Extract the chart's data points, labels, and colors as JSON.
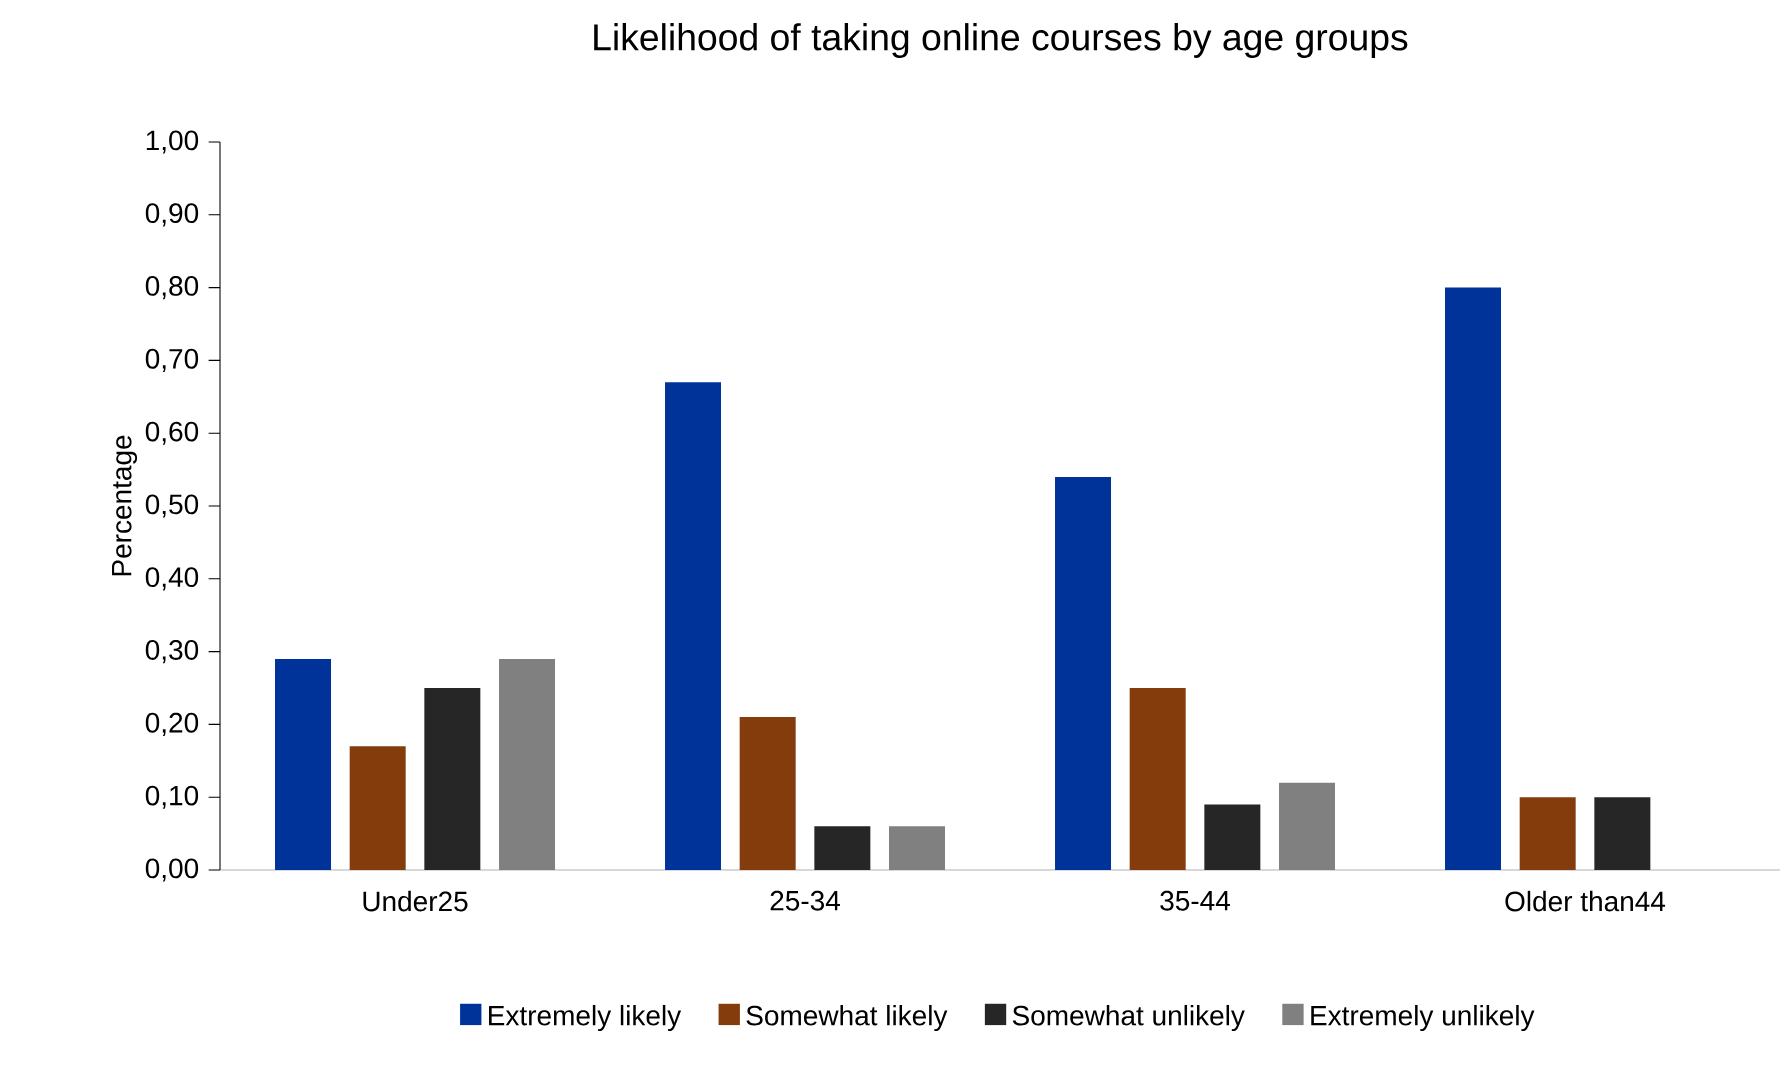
{
  "chart_data": {
    "type": "bar",
    "title": "Likelihood of taking online courses by age groups",
    "ylabel": "Percentage",
    "categories": [
      "Under25",
      "25-34",
      "35-44",
      "Older than44"
    ],
    "series": [
      {
        "name": "Extremely likely",
        "color": "#003399",
        "values": [
          0.29,
          0.67,
          0.54,
          0.8
        ]
      },
      {
        "name": "Somewhat likely",
        "color": "#843c0c",
        "values": [
          0.17,
          0.21,
          0.25,
          0.1
        ]
      },
      {
        "name": "Somewhat unlikely",
        "color": "#262626",
        "values": [
          0.25,
          0.06,
          0.09,
          0.1
        ]
      },
      {
        "name": "Extremely unlikely",
        "color": "#808080",
        "values": [
          0.29,
          0.06,
          0.12,
          0.0
        ]
      }
    ],
    "ylim": [
      0,
      1
    ],
    "yticks": [
      {
        "value": 0,
        "label": "0,00"
      },
      {
        "value": 0.1,
        "label": "0,10"
      },
      {
        "value": 0.2,
        "label": "0,20"
      },
      {
        "value": 0.3,
        "label": "0,30"
      },
      {
        "value": 0.4,
        "label": "0,40"
      },
      {
        "value": 0.5,
        "label": "0,50"
      },
      {
        "value": 0.6,
        "label": "0,60"
      },
      {
        "value": 0.7,
        "label": "0,70"
      },
      {
        "value": 0.8,
        "label": "0,80"
      },
      {
        "value": 0.9,
        "label": "0,90"
      },
      {
        "value": 1,
        "label": "1,00"
      }
    ],
    "grid": false,
    "legend": "bottom"
  }
}
